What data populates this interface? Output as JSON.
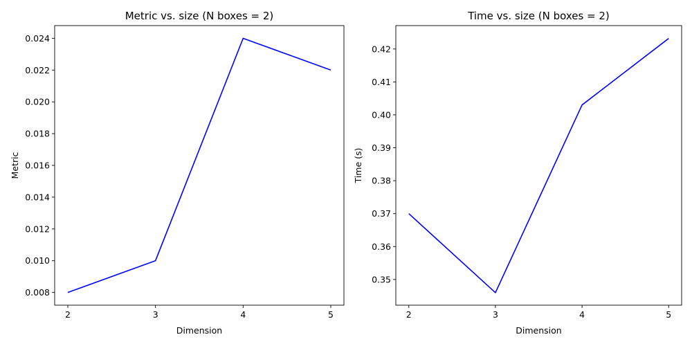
{
  "chart_data": [
    {
      "type": "line",
      "title": "Metric vs. size (N boxes = 2)",
      "xlabel": "Dimension",
      "ylabel": "Metric",
      "x": [
        2,
        3,
        4,
        5
      ],
      "series": [
        {
          "values": [
            0.008,
            0.01,
            0.024,
            0.022
          ]
        }
      ],
      "xticks": [
        2,
        3,
        4,
        5
      ],
      "xtick_labels": [
        "2",
        "3",
        "4",
        "5"
      ],
      "yticks": [
        0.008,
        0.01,
        0.012,
        0.014,
        0.016,
        0.018,
        0.02,
        0.022,
        0.024
      ],
      "ytick_labels": [
        "0.008",
        "0.010",
        "0.012",
        "0.014",
        "0.016",
        "0.018",
        "0.020",
        "0.022",
        "0.024"
      ],
      "xlim": [
        1.85,
        5.15
      ],
      "ylim": [
        0.0072,
        0.0248
      ],
      "grid": false,
      "line_color": "#0000ff"
    },
    {
      "type": "line",
      "title": "Time vs. size (N boxes = 2)",
      "xlabel": "Dimension",
      "ylabel": "Time (s)",
      "x": [
        2,
        3,
        4,
        5
      ],
      "series": [
        {
          "values": [
            0.37,
            0.346,
            0.403,
            0.4232
          ]
        }
      ],
      "xticks": [
        2,
        3,
        4,
        5
      ],
      "xtick_labels": [
        "2",
        "3",
        "4",
        "5"
      ],
      "yticks": [
        0.35,
        0.36,
        0.37,
        0.38,
        0.39,
        0.4,
        0.41,
        0.42
      ],
      "ytick_labels": [
        "0.35",
        "0.36",
        "0.37",
        "0.38",
        "0.39",
        "0.40",
        "0.41",
        "0.42"
      ],
      "xlim": [
        1.85,
        5.15
      ],
      "ylim": [
        0.3422,
        0.4271
      ],
      "grid": false,
      "line_color": "#0000ff"
    }
  ]
}
